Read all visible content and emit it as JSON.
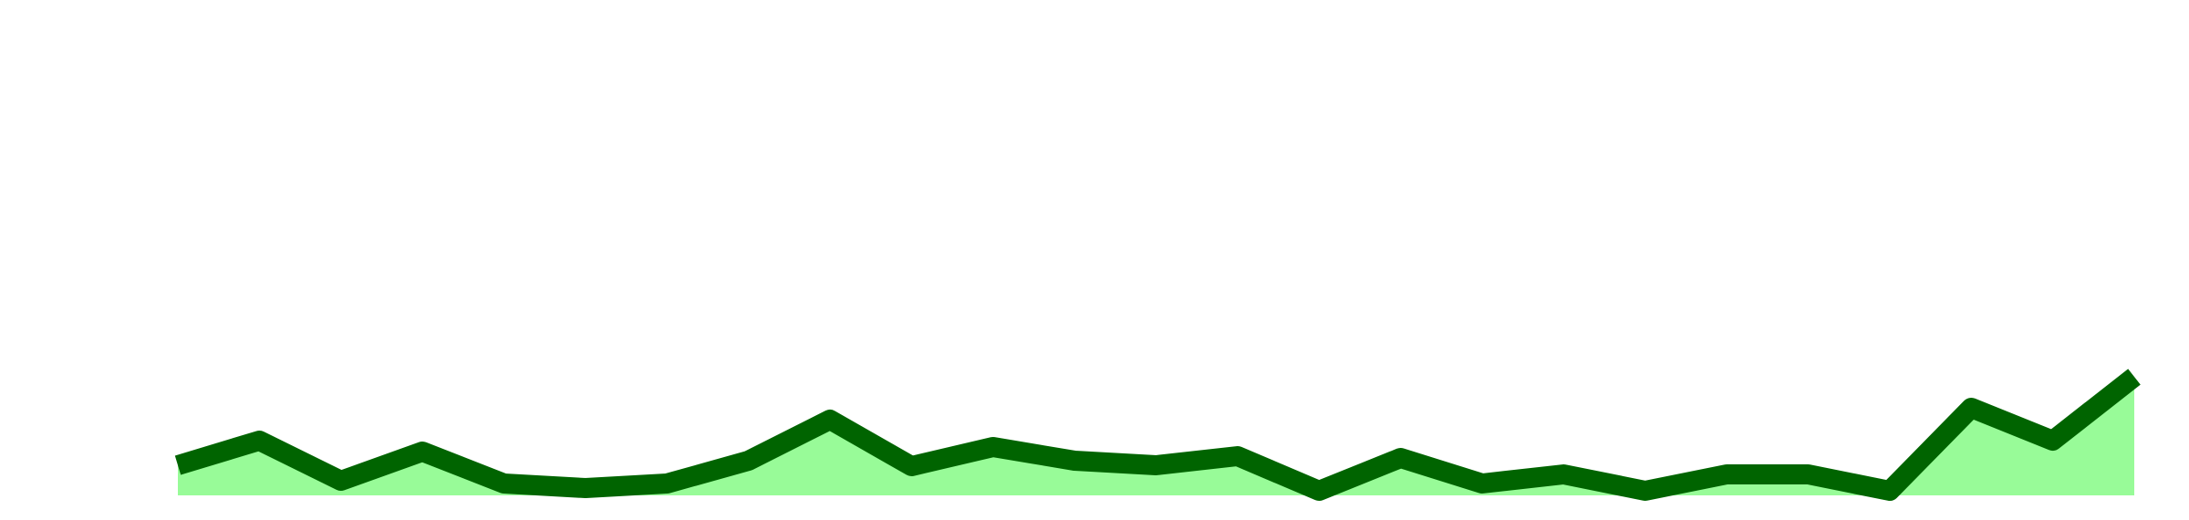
{
  "chart_data": {
    "type": "area",
    "categories": [
      null,
      null,
      null,
      null,
      null,
      null,
      null,
      null,
      null,
      null,
      null,
      null,
      null,
      null,
      null,
      null,
      null,
      null,
      null,
      null,
      null,
      null,
      null,
      null,
      null
    ],
    "series": [
      {
        "color": "#006400",
        "fill": "#98fb98",
        "values": [
          33,
          60,
          16,
          48,
          13,
          8,
          13,
          38,
          83,
          32,
          53,
          38,
          33,
          43,
          5,
          41,
          13,
          23,
          5,
          23,
          23,
          5,
          96,
          60,
          130
        ]
      }
    ],
    "ylim": [
      0,
      543
    ]
  }
}
